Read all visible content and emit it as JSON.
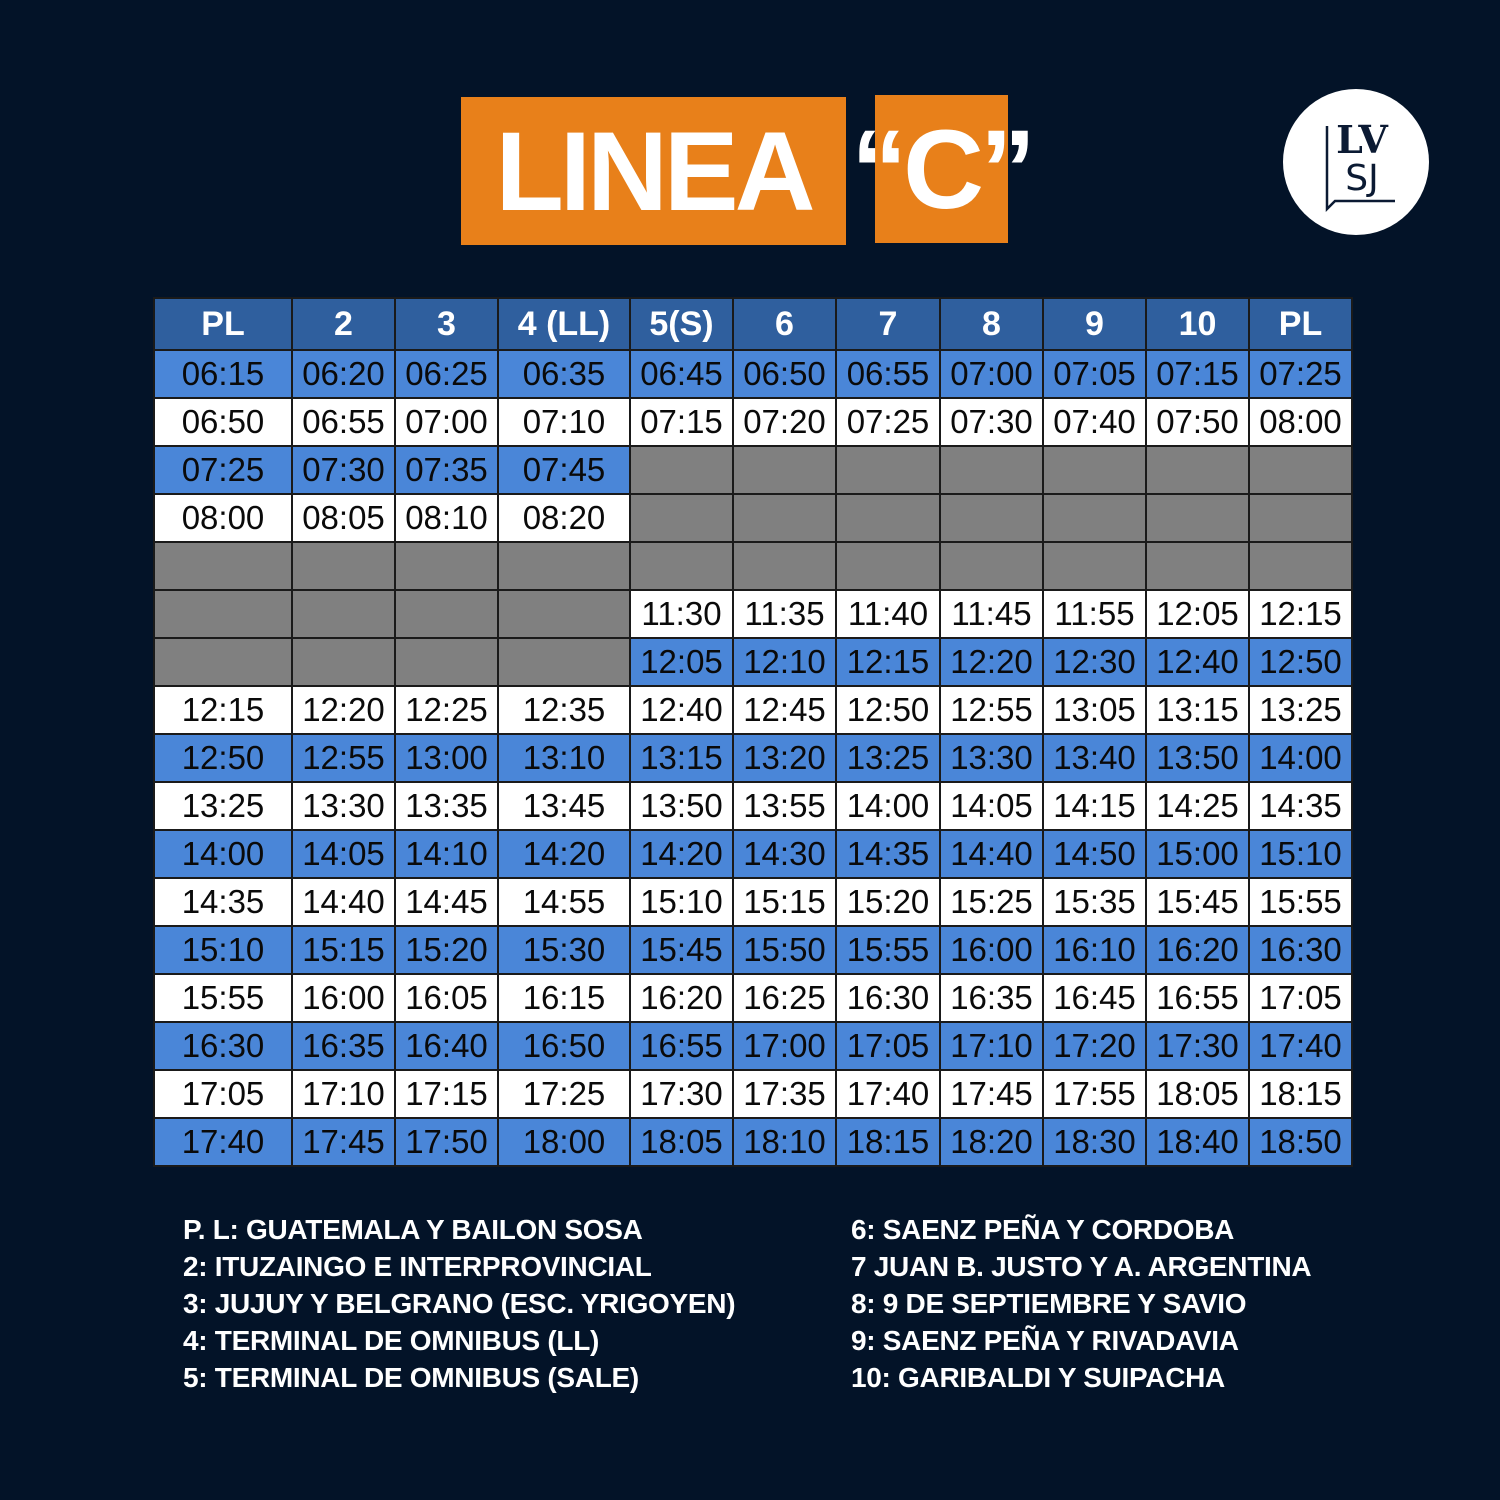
{
  "title": {
    "word": "LINEA",
    "letter": "“C”"
  },
  "logo": {
    "text_top": "LV",
    "text_bottom": "SJ"
  },
  "colors": {
    "background": "#031328",
    "accent": "#e8801a",
    "header": "#2f5f9e",
    "row_blue": "#4a86d8",
    "row_white": "#ffffff",
    "no_service": "#808080"
  },
  "table": {
    "headers": [
      "PL",
      "2",
      "3",
      "4 (LL)",
      "5(S)",
      "6",
      "7",
      "8",
      "9",
      "10",
      "PL"
    ],
    "rows": [
      [
        "06:15",
        "06:20",
        "06:25",
        "06:35",
        "06:45",
        "06:50",
        "06:55",
        "07:00",
        "07:05",
        "07:15",
        "07:25"
      ],
      [
        "06:50",
        "06:55",
        "07:00",
        "07:10",
        "07:15",
        "07:20",
        "07:25",
        "07:30",
        "07:40",
        "07:50",
        "08:00"
      ],
      [
        "07:25",
        "07:30",
        "07:35",
        "07:45",
        null,
        null,
        null,
        null,
        null,
        null,
        null
      ],
      [
        "08:00",
        "08:05",
        "08:10",
        "08:20",
        null,
        null,
        null,
        null,
        null,
        null,
        null
      ],
      [
        null,
        null,
        null,
        null,
        null,
        null,
        null,
        null,
        null,
        null,
        null
      ],
      [
        null,
        null,
        null,
        null,
        "11:30",
        "11:35",
        "11:40",
        "11:45",
        "11:55",
        "12:05",
        "12:15"
      ],
      [
        null,
        null,
        null,
        null,
        "12:05",
        "12:10",
        "12:15",
        "12:20",
        "12:30",
        "12:40",
        "12:50"
      ],
      [
        "12:15",
        "12:20",
        "12:25",
        "12:35",
        "12:40",
        "12:45",
        "12:50",
        "12:55",
        "13:05",
        "13:15",
        "13:25"
      ],
      [
        "12:50",
        "12:55",
        "13:00",
        "13:10",
        "13:15",
        "13:20",
        "13:25",
        "13:30",
        "13:40",
        "13:50",
        "14:00"
      ],
      [
        "13:25",
        "13:30",
        "13:35",
        "13:45",
        "13:50",
        "13:55",
        "14:00",
        "14:05",
        "14:15",
        "14:25",
        "14:35"
      ],
      [
        "14:00",
        "14:05",
        "14:10",
        "14:20",
        "14:20",
        "14:30",
        "14:35",
        "14:40",
        "14:50",
        "15:00",
        "15:10"
      ],
      [
        "14:35",
        "14:40",
        "14:45",
        "14:55",
        "15:10",
        "15:15",
        "15:20",
        "15:25",
        "15:35",
        "15:45",
        "15:55"
      ],
      [
        "15:10",
        "15:15",
        "15:20",
        "15:30",
        "15:45",
        "15:50",
        "15:55",
        "16:00",
        "16:10",
        "16:20",
        "16:30"
      ],
      [
        "15:55",
        "16:00",
        "16:05",
        "16:15",
        "16:20",
        "16:25",
        "16:30",
        "16:35",
        "16:45",
        "16:55",
        "17:05"
      ],
      [
        "16:30",
        "16:35",
        "16:40",
        "16:50",
        "16:55",
        "17:00",
        "17:05",
        "17:10",
        "17:20",
        "17:30",
        "17:40"
      ],
      [
        "17:05",
        "17:10",
        "17:15",
        "17:25",
        "17:30",
        "17:35",
        "17:40",
        "17:45",
        "17:55",
        "18:05",
        "18:15"
      ],
      [
        "17:40",
        "17:45",
        "17:50",
        "18:00",
        "18:05",
        "18:10",
        "18:15",
        "18:20",
        "18:30",
        "18:40",
        "18:50"
      ]
    ]
  },
  "legend": {
    "left": [
      "P. L: GUATEMALA Y BAILON SOSA",
      "2: ITUZAINGO E INTERPROVINCIAL",
      "3: JUJUY Y BELGRANO (ESC. YRIGOYEN)",
      "4: TERMINAL DE OMNIBUS (LL)",
      "5: TERMINAL DE OMNIBUS (SALE)"
    ],
    "right": [
      "6: SAENZ PEÑA Y CORDOBA",
      "7 JUAN B. JUSTO Y A. ARGENTINA",
      "8: 9 DE SEPTIEMBRE Y SAVIO",
      "9: SAENZ PEÑA Y RIVADAVIA",
      "10: GARIBALDI Y SUIPACHA"
    ]
  }
}
